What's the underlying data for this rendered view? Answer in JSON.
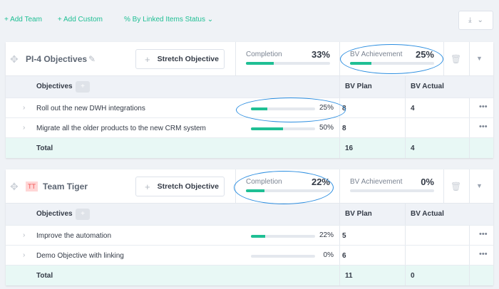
{
  "toolbar": {
    "add_team": "+ Add Team",
    "add_custom": "+ Add Custom",
    "mode": "% By Linked Items Status",
    "mode_chevron": "⌄"
  },
  "colors": {
    "accent": "#1fbf94",
    "annotation": "#2a8de0"
  },
  "cards": [
    {
      "title": "PI-4 Objectives",
      "stretch": "Stretch Objective",
      "completion_label": "Completion",
      "completion": "33%",
      "completion_pct": 33,
      "bv_label": "BV Achievement",
      "bv": "25%",
      "bv_pct": 25,
      "columns": {
        "objectives": "Objectives",
        "bv_plan": "BV Plan",
        "bv_actual": "BV Actual"
      },
      "rows": [
        {
          "name": "Roll out the new DWH integrations",
          "pct": "25%",
          "pct_value": 25,
          "bv_plan": "8",
          "bv_actual": "4"
        },
        {
          "name": "Migrate all the older products to the new CRM system",
          "pct": "50%",
          "pct_value": 50,
          "bv_plan": "8",
          "bv_actual": ""
        }
      ],
      "total": {
        "label": "Total",
        "bv_plan": "16",
        "bv_actual": "4"
      }
    },
    {
      "title": "Team Tiger",
      "badge": "TT",
      "stretch": "Stretch Objective",
      "completion_label": "Completion",
      "completion": "22%",
      "completion_pct": 22,
      "bv_label": "BV Achievement",
      "bv": "0%",
      "bv_pct": 0,
      "columns": {
        "objectives": "Objectives",
        "bv_plan": "BV Plan",
        "bv_actual": "BV Actual"
      },
      "rows": [
        {
          "name": "Improve the automation",
          "pct": "22%",
          "pct_value": 22,
          "bv_plan": "5",
          "bv_actual": ""
        },
        {
          "name": "Demo Objective with linking",
          "pct": "0%",
          "pct_value": 0,
          "bv_plan": "6",
          "bv_actual": ""
        }
      ],
      "total": {
        "label": "Total",
        "bv_plan": "11",
        "bv_actual": "0"
      }
    }
  ]
}
